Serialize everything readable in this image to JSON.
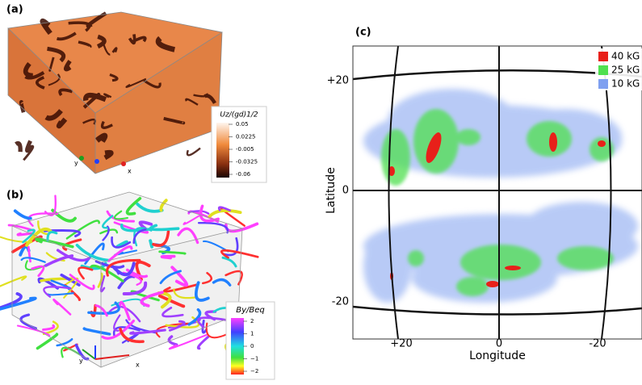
{
  "panel_a": {
    "label": "(a)",
    "colorbar": {
      "title": "Uz/(gd)1/2",
      "ticks": [
        "0.05",
        "0.0225",
        "-0.005",
        "-0.0325",
        "-0.06"
      ]
    },
    "axes": [
      "y",
      "x"
    ]
  },
  "panel_b": {
    "label": "(b)",
    "colorbar": {
      "title": "By/Beq",
      "ticks": [
        "2",
        "1",
        "0",
        "−1",
        "−2"
      ]
    },
    "axes": [
      "y",
      "x"
    ]
  },
  "panel_c": {
    "label": "(c)",
    "y_label": "Latitude",
    "x_label": "Longitude",
    "y_ticks": [
      "+20",
      "0",
      "-20"
    ],
    "x_ticks": [
      "+20",
      "0",
      "-20"
    ],
    "legend": [
      {
        "name": "40 kG",
        "color": "#e8201a"
      },
      {
        "name": "25 kG",
        "color": "#4fe04f"
      },
      {
        "name": "10 kG",
        "color": "#7fa0f0"
      }
    ]
  }
}
